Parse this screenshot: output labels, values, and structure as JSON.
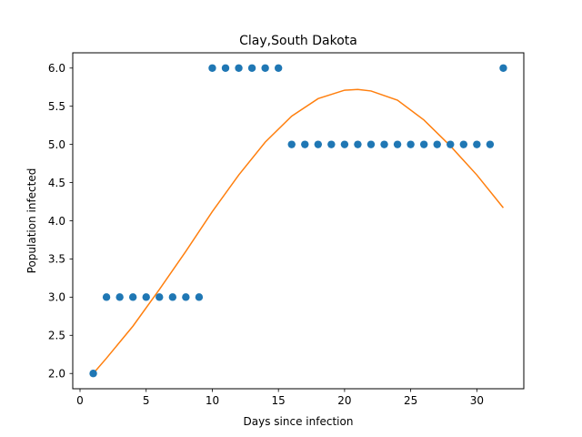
{
  "chart_data": {
    "type": "scatter",
    "title": "Clay,South Dakota",
    "xlabel": "Days since infection",
    "ylabel": "Population infected",
    "xlim": [
      -0.55,
      33.55
    ],
    "ylim": [
      1.8,
      6.2
    ],
    "xticks": [
      0,
      5,
      10,
      15,
      20,
      25,
      30
    ],
    "yticks": [
      2.0,
      2.5,
      3.0,
      3.5,
      4.0,
      4.5,
      5.0,
      5.5,
      6.0
    ],
    "grid": false,
    "colors": {
      "points": "#1f77b4",
      "fit": "#ff7f0e"
    },
    "series": [
      {
        "kind": "scatter",
        "x": [
          1,
          2,
          3,
          4,
          5,
          6,
          7,
          8,
          9,
          10,
          11,
          12,
          13,
          14,
          15,
          16,
          17,
          18,
          19,
          20,
          21,
          22,
          23,
          24,
          25,
          26,
          27,
          28,
          29,
          30,
          31,
          32
        ],
        "y": [
          2,
          3,
          3,
          3,
          3,
          3,
          3,
          3,
          3,
          6,
          6,
          6,
          6,
          6,
          6,
          5,
          5,
          5,
          5,
          5,
          5,
          5,
          5,
          5,
          5,
          5,
          5,
          5,
          5,
          5,
          5,
          6
        ]
      },
      {
        "kind": "line",
        "x": [
          1,
          2,
          4,
          6,
          8,
          10,
          12,
          14,
          16,
          18,
          20,
          21,
          22,
          24,
          26,
          28,
          30,
          32
        ],
        "y": [
          2.0,
          2.2,
          2.62,
          3.1,
          3.6,
          4.12,
          4.6,
          5.03,
          5.37,
          5.6,
          5.71,
          5.72,
          5.7,
          5.58,
          5.32,
          4.98,
          4.6,
          4.17
        ]
      }
    ]
  }
}
